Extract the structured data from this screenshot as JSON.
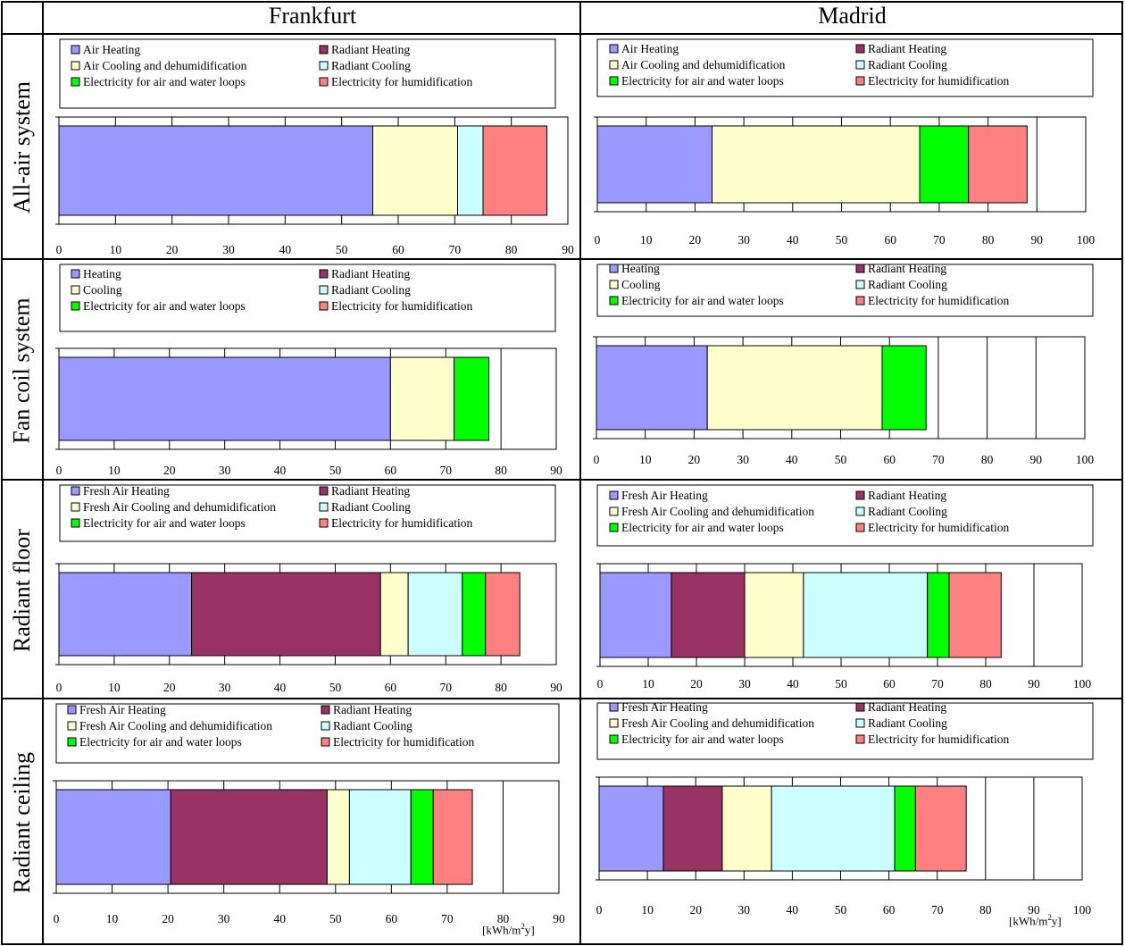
{
  "table": {
    "columns": [
      "Frankfurt",
      "Madrid"
    ],
    "rows": [
      "All-air system",
      "Fan coil system",
      "Radiant floor",
      "Radiant ceiling"
    ]
  },
  "unit": {
    "prefix": "[kWh/m",
    "exp": "2",
    "suffix": "y]"
  },
  "colors": {
    "heating": "#9999ff",
    "radiant_heating": "#993366",
    "cooling": "#ffffcc",
    "radiant_cooling": "#ccffff",
    "electricity_loops": "#00ff00",
    "electricity_humid": "#ff8080"
  },
  "chart_data": [
    {
      "type": "bar",
      "orientation": "horizontal",
      "stacked": true,
      "city": "Frankfurt",
      "system": "All-air system",
      "xlim": [
        0,
        90
      ],
      "xticks": [
        0,
        10,
        20,
        30,
        40,
        50,
        60,
        70,
        80,
        90
      ],
      "legend": [
        "Air Heating",
        "Radiant Heating",
        "Air Cooling and dehumidification",
        "Radiant Cooling",
        "Electricity for air and water loops",
        "Electricity for humidification"
      ],
      "values": [
        55.5,
        0,
        15,
        4.5,
        0,
        11.3
      ]
    },
    {
      "type": "bar",
      "orientation": "horizontal",
      "stacked": true,
      "city": "Madrid",
      "system": "All-air system",
      "xlim": [
        0,
        100
      ],
      "xticks": [
        0,
        10,
        20,
        30,
        40,
        50,
        60,
        70,
        80,
        90,
        100
      ],
      "legend": [
        "Air Heating",
        "Radiant Heating",
        "Air Cooling and dehumidification",
        "Radiant Cooling",
        "Electricity for air and water loops",
        "Electricity for humidification"
      ],
      "values": [
        23.5,
        0,
        42.5,
        0,
        10,
        12
      ]
    },
    {
      "type": "bar",
      "orientation": "horizontal",
      "stacked": true,
      "city": "Frankfurt",
      "system": "Fan coil system",
      "xlim": [
        0,
        90
      ],
      "xticks": [
        0,
        10,
        20,
        30,
        40,
        50,
        60,
        70,
        80,
        90
      ],
      "legend": [
        "Heating",
        "Radiant Heating",
        "Cooling",
        "Radiant Cooling",
        "Electricity for air and water loops",
        "Electricity for humidification"
      ],
      "values": [
        60,
        0,
        11.5,
        0,
        6.3,
        0
      ]
    },
    {
      "type": "bar",
      "orientation": "horizontal",
      "stacked": true,
      "city": "Madrid",
      "system": "Fan coil system",
      "xlim": [
        0,
        100
      ],
      "xticks": [
        0,
        10,
        20,
        30,
        40,
        50,
        60,
        70,
        80,
        90,
        100
      ],
      "legend": [
        "Heating",
        "Radiant Heating",
        "Cooling",
        "Radiant Cooling",
        "Electricity for air and water loops",
        "Electricity for humidification"
      ],
      "values": [
        22.7,
        0,
        35.8,
        0,
        9,
        0
      ]
    },
    {
      "type": "bar",
      "orientation": "horizontal",
      "stacked": true,
      "city": "Frankfurt",
      "system": "Radiant floor",
      "xlim": [
        0,
        90
      ],
      "xticks": [
        0,
        10,
        20,
        30,
        40,
        50,
        60,
        70,
        80,
        90
      ],
      "legend": [
        "Fresh Air Heating",
        "Radiant Heating",
        "Fresh Air Cooling and dehumidification",
        "Radiant Cooling",
        "Electricity for air and water loops",
        "Electricity for humidification"
      ],
      "values": [
        24,
        34.2,
        5,
        9.8,
        4.2,
        6.2
      ]
    },
    {
      "type": "bar",
      "orientation": "horizontal",
      "stacked": true,
      "city": "Madrid",
      "system": "Radiant floor",
      "xlim": [
        0,
        100
      ],
      "xticks": [
        0,
        10,
        20,
        30,
        40,
        50,
        60,
        70,
        80,
        90,
        100
      ],
      "legend": [
        "Fresh Air Heating",
        "Radiant Heating",
        "Fresh Air Cooling and dehumidification",
        "Radiant Cooling",
        "Electricity for air and water loops",
        "Electricity for humidification"
      ],
      "values": [
        14.8,
        15.2,
        12.2,
        25.7,
        4.5,
        10.8
      ]
    },
    {
      "type": "bar",
      "orientation": "horizontal",
      "stacked": true,
      "city": "Frankfurt",
      "system": "Radiant ceiling",
      "xlim": [
        0,
        90
      ],
      "xticks": [
        0,
        10,
        20,
        30,
        40,
        50,
        60,
        70,
        80,
        90
      ],
      "legend": [
        "Fresh Air Heating",
        "Radiant Heating",
        "Fresh Air Cooling and dehumidification",
        "Radiant Cooling",
        "Electricity for air and water loops",
        "Electricity for humidification"
      ],
      "values": [
        20.5,
        28,
        4,
        11,
        4,
        7
      ]
    },
    {
      "type": "bar",
      "orientation": "horizontal",
      "stacked": true,
      "city": "Madrid",
      "system": "Radiant ceiling",
      "xlim": [
        0,
        100
      ],
      "xticks": [
        0,
        10,
        20,
        30,
        40,
        50,
        60,
        70,
        80,
        90,
        100
      ],
      "legend": [
        "Fresh Air Heating",
        "Radiant Heating",
        "Fresh Air Cooling and dehumidification",
        "Radiant Cooling",
        "Electricity for air and water loops",
        "Electricity for humidification"
      ],
      "values": [
        13.3,
        12.2,
        10.2,
        25.5,
        4.3,
        10.5
      ]
    }
  ]
}
